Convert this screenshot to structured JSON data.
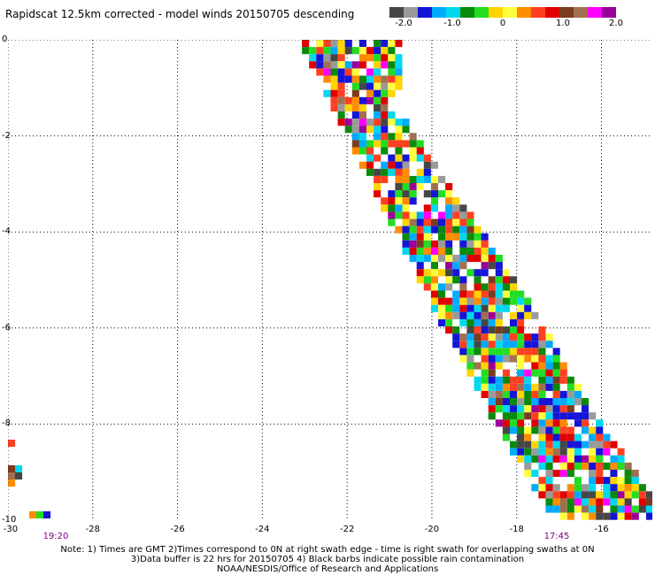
{
  "title": "Rapidscat 12.5km corrected - model winds 20150705 descending",
  "colorbar": {
    "colors": [
      "#464646",
      "#9a9a9a",
      "#1515d8",
      "#00aaff",
      "#00d8f0",
      "#0a8a0a",
      "#22dd22",
      "#ffd400",
      "#ffff40",
      "#ff8c00",
      "#ff4020",
      "#e00000",
      "#7a3b1e",
      "#a07050",
      "#ff00ff",
      "#9a009a"
    ],
    "ticks": [
      "-2.0",
      "-1.0",
      "0",
      "1.0",
      "2.0"
    ]
  },
  "axes": {
    "x_ticks": [
      "-30",
      "-28",
      "-26",
      "-24",
      "-22",
      "-20",
      "-18",
      "-16"
    ],
    "x_range": [
      -30,
      -14.8
    ],
    "y_ticks": [
      "0",
      "-2",
      "-4",
      "-6",
      "-8",
      "-10"
    ],
    "y_range": [
      -10,
      0
    ]
  },
  "times": [
    "19:20",
    "17:45"
  ],
  "notes": [
    "Note: 1) Times are GMT 2)Times correspond to 0N at right swath edge - time is right swath for overlapping swaths at 0N",
    "3)Data buffer is 22 hrs for 20150705 4) Black barbs indicate possible rain contamination",
    "NOAA/NESDIS/Office of Research and Applications"
  ]
}
